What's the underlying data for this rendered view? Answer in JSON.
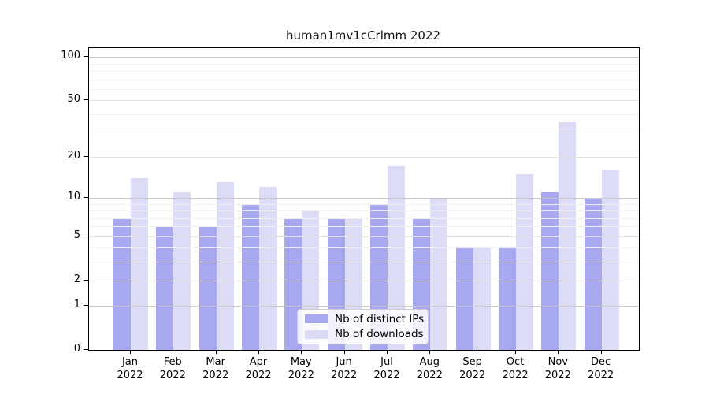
{
  "title": "human1mv1cCrlmm 2022",
  "chart_data": {
    "type": "bar",
    "categories": [
      "Jan 2022",
      "Feb 2022",
      "Mar 2022",
      "Apr 2022",
      "May 2022",
      "Jun 2022",
      "Jul 2022",
      "Aug 2022",
      "Sep 2022",
      "Oct 2022",
      "Nov 2022",
      "Dec 2022"
    ],
    "series": [
      {
        "name": "Nb of distinct IPs",
        "color": "#a8a8f0",
        "values": [
          7,
          6,
          6,
          9,
          7,
          7,
          9,
          7,
          4,
          4,
          11,
          10
        ]
      },
      {
        "name": "Nb of downloads",
        "color": "#dcdcf6",
        "values": [
          14,
          11,
          13,
          12,
          8,
          7,
          17,
          10,
          4,
          15,
          35,
          16
        ]
      }
    ],
    "title": "human1mv1cCrlmm 2022",
    "xlabel": "",
    "ylabel": "",
    "yticks": [
      0,
      1,
      2,
      5,
      10,
      20,
      50,
      100
    ],
    "minor_gridlines": [
      3,
      4,
      6,
      7,
      8,
      9,
      30,
      40,
      60,
      70,
      80,
      90
    ],
    "ylim": [
      0,
      115
    ],
    "yscale": "log1p",
    "grid": "on",
    "legend_position": "lower center"
  }
}
